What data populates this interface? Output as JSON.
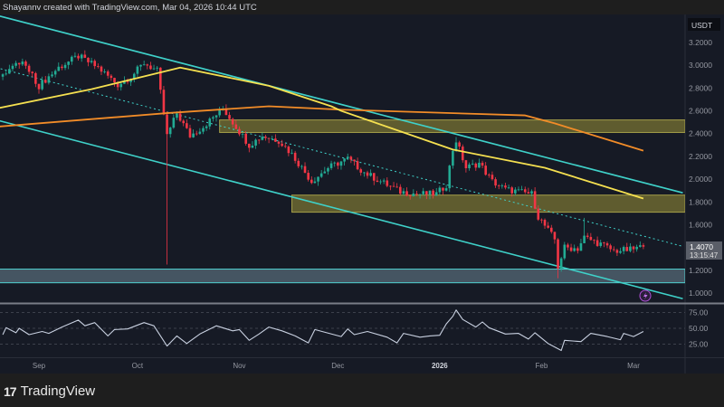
{
  "header": {
    "attribution": "Shayannv created with TradingView.com, Mar 04, 2026 10:44 UTC"
  },
  "footer": {
    "logo_text": "TradingView"
  },
  "colors": {
    "background": "#161a25",
    "up": "#22ab94",
    "down": "#f23645",
    "channel": "#3fd1c9",
    "ma_fast": "#f5e050",
    "ma_slow": "#f28c28",
    "zone_supply": "#8c8636",
    "zone_support": "#4fd0d0",
    "rsi": "#c8d0e0"
  },
  "chart_data": {
    "type": "candlestick",
    "currency": "USDT",
    "last_price": "1.4070",
    "countdown": "13:15:47",
    "ylim": [
      0.9,
      3.3
    ],
    "yticks": [
      "3.2000",
      "3.0000",
      "2.8000",
      "2.6000",
      "2.4000",
      "2.2000",
      "2.0000",
      "1.8000",
      "1.6000",
      "1.2000",
      "1.0000"
    ],
    "xticks": [
      {
        "label": "Sep",
        "date": "2025-09-01"
      },
      {
        "label": "Oct",
        "date": "2025-10-01"
      },
      {
        "label": "Nov",
        "date": "2025-11-01"
      },
      {
        "label": "Dec",
        "date": "2025-12-01"
      },
      {
        "label": "2026",
        "date": "2026-01-01"
      },
      {
        "label": "Feb",
        "date": "2026-02-01"
      },
      {
        "label": "Mar",
        "date": "2026-03-01"
      }
    ],
    "close_path": [
      [
        "2025-08-20",
        2.9
      ],
      [
        "2025-08-21",
        2.94
      ],
      [
        "2025-08-27",
        3.03
      ],
      [
        "2025-09-01",
        2.82
      ],
      [
        "2025-09-07",
        2.98
      ],
      [
        "2025-09-13",
        3.08
      ],
      [
        "2025-09-19",
        2.98
      ],
      [
        "2025-09-25",
        2.83
      ],
      [
        "2025-09-29",
        2.9
      ],
      [
        "2025-10-03",
        3.02
      ],
      [
        "2025-10-07",
        2.95
      ],
      [
        "2025-10-10",
        2.38
      ],
      [
        "2025-10-13",
        2.58
      ],
      [
        "2025-10-17",
        2.38
      ],
      [
        "2025-10-21",
        2.46
      ],
      [
        "2025-10-27",
        2.62
      ],
      [
        "2025-10-31",
        2.46
      ],
      [
        "2025-11-04",
        2.3
      ],
      [
        "2025-11-08",
        2.38
      ],
      [
        "2025-11-13",
        2.34
      ],
      [
        "2025-11-17",
        2.22
      ],
      [
        "2025-11-23",
        1.98
      ],
      [
        "2025-11-28",
        2.1
      ],
      [
        "2025-12-04",
        2.18
      ],
      [
        "2025-12-09",
        2.06
      ],
      [
        "2025-12-14",
        1.98
      ],
      [
        "2025-12-20",
        1.89
      ],
      [
        "2025-12-25",
        1.87
      ],
      [
        "2025-12-31",
        1.87
      ],
      [
        "2026-01-03",
        1.95
      ],
      [
        "2026-01-05",
        2.26
      ],
      [
        "2026-01-06",
        2.34
      ],
      [
        "2026-01-09",
        2.1
      ],
      [
        "2026-01-13",
        2.14
      ],
      [
        "2026-01-17",
        1.98
      ],
      [
        "2026-01-21",
        1.91
      ],
      [
        "2026-01-29",
        1.87
      ],
      [
        "2026-01-31",
        1.67
      ],
      [
        "2026-02-02",
        1.59
      ],
      [
        "2026-02-05",
        1.47
      ],
      [
        "2026-02-06",
        1.23
      ],
      [
        "2026-02-08",
        1.4
      ],
      [
        "2026-02-12",
        1.39
      ],
      [
        "2026-02-14",
        1.49
      ],
      [
        "2026-02-19",
        1.43
      ],
      [
        "2026-02-23",
        1.37
      ],
      [
        "2026-02-28",
        1.38
      ],
      [
        "2026-03-04",
        1.407
      ]
    ],
    "extreme_wicks": [
      {
        "date": "2025-10-10",
        "low": 1.25
      },
      {
        "date": "2026-02-14",
        "high": 1.66
      },
      {
        "date": "2026-02-06",
        "low": 1.13
      },
      {
        "date": "2026-01-06",
        "high": 2.37
      }
    ],
    "ma_fast": [
      [
        "2025-08-19",
        2.62
      ],
      [
        "2025-09-17",
        2.79
      ],
      [
        "2025-10-14",
        2.98
      ],
      [
        "2025-11-10",
        2.82
      ],
      [
        "2025-11-29",
        2.64
      ],
      [
        "2025-12-02",
        2.6
      ],
      [
        "2026-01-05",
        2.26
      ],
      [
        "2026-02-02",
        2.1
      ],
      [
        "2026-03-04",
        1.83
      ]
    ],
    "ma_slow": [
      [
        "2025-08-19",
        2.46
      ],
      [
        "2025-10-10",
        2.58
      ],
      [
        "2025-11-10",
        2.64
      ],
      [
        "2025-12-02",
        2.61
      ],
      [
        "2026-01-27",
        2.56
      ],
      [
        "2026-02-05",
        2.49
      ],
      [
        "2026-03-04",
        2.25
      ]
    ],
    "channel": {
      "upper": [
        [
          "2025-08-19",
          3.44
        ],
        [
          "2026-03-16",
          1.88
        ]
      ],
      "middle": [
        [
          "2025-08-19",
          2.98
        ],
        [
          "2026-03-16",
          1.41
        ]
      ],
      "lower": [
        [
          "2025-08-19",
          2.52
        ],
        [
          "2026-03-16",
          0.95
        ]
      ]
    },
    "zones": [
      {
        "kind": "supply",
        "from": "2025-10-26",
        "top": 2.52,
        "bottom": 2.41
      },
      {
        "kind": "supply",
        "from": "2025-11-17",
        "top": 1.86,
        "bottom": 1.71
      },
      {
        "kind": "support",
        "from": "2025-08-19",
        "top": 1.21,
        "bottom": 1.09
      }
    ],
    "rsi": {
      "levels": [
        "75.00",
        "50.00",
        "25.00"
      ],
      "values": [
        [
          "2025-08-21",
          40
        ],
        [
          "2025-08-22",
          51
        ],
        [
          "2025-08-25",
          43
        ],
        [
          "2025-08-26",
          50
        ],
        [
          "2025-08-29",
          40
        ],
        [
          "2025-09-02",
          45
        ],
        [
          "2025-09-04",
          42
        ],
        [
          "2025-09-08",
          52
        ],
        [
          "2025-09-13",
          63
        ],
        [
          "2025-09-15",
          54
        ],
        [
          "2025-09-18",
          59
        ],
        [
          "2025-09-22",
          38
        ],
        [
          "2025-09-24",
          48
        ],
        [
          "2025-09-28",
          49
        ],
        [
          "2025-10-03",
          59
        ],
        [
          "2025-10-06",
          54
        ],
        [
          "2025-10-10",
          22
        ],
        [
          "2025-10-13",
          38
        ],
        [
          "2025-10-16",
          26
        ],
        [
          "2025-10-20",
          41
        ],
        [
          "2025-10-25",
          54
        ],
        [
          "2025-10-30",
          46
        ],
        [
          "2025-11-01",
          48
        ],
        [
          "2025-11-04",
          31
        ],
        [
          "2025-11-07",
          41
        ],
        [
          "2025-11-10",
          52
        ],
        [
          "2025-11-14",
          46
        ],
        [
          "2025-11-18",
          38
        ],
        [
          "2025-11-22",
          27
        ],
        [
          "2025-11-24",
          48
        ],
        [
          "2025-12-02",
          37
        ],
        [
          "2025-12-04",
          49
        ],
        [
          "2025-12-06",
          40
        ],
        [
          "2025-12-10",
          45
        ],
        [
          "2025-12-16",
          36
        ],
        [
          "2025-12-19",
          27
        ],
        [
          "2025-12-21",
          42
        ],
        [
          "2025-12-26",
          36
        ],
        [
          "2025-12-29",
          38
        ],
        [
          "2026-01-01",
          39
        ],
        [
          "2026-01-03",
          57
        ],
        [
          "2026-01-05",
          69
        ],
        [
          "2026-01-06",
          79
        ],
        [
          "2026-01-08",
          64
        ],
        [
          "2026-01-12",
          52
        ],
        [
          "2026-01-14",
          60
        ],
        [
          "2026-01-16",
          51
        ],
        [
          "2026-01-21",
          41
        ],
        [
          "2026-01-25",
          42
        ],
        [
          "2026-01-28",
          33
        ],
        [
          "2026-01-30",
          43
        ],
        [
          "2026-02-03",
          26
        ],
        [
          "2026-02-07",
          15
        ],
        [
          "2026-02-08",
          31
        ],
        [
          "2026-02-13",
          29
        ],
        [
          "2026-02-16",
          42
        ],
        [
          "2026-02-21",
          37
        ],
        [
          "2026-02-25",
          32
        ],
        [
          "2026-02-26",
          42
        ],
        [
          "2026-03-01",
          37
        ],
        [
          "2026-03-04",
          45
        ]
      ]
    }
  },
  "icons": {
    "alert": "lightning-icon"
  }
}
